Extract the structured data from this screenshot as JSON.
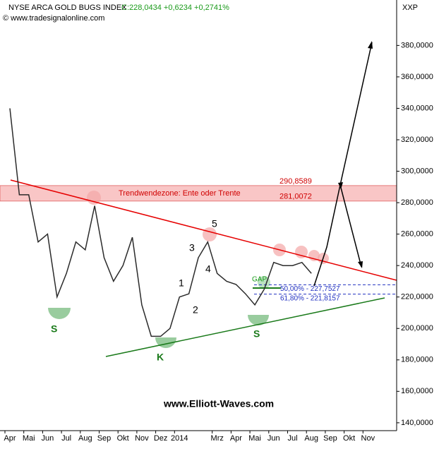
{
  "chart_data": {
    "type": "line",
    "title": "NYSE ARCA GOLD BUGS INDEX",
    "quote": "C:228,0434 +0,6234 +0,2741%",
    "source": "© www.tradesignalonline.com",
    "symbol": "XXP",
    "categories": [
      "Apr",
      null,
      "Mai",
      null,
      "Jun",
      null,
      "Jul",
      null,
      "Aug",
      null,
      "Sep",
      null,
      "Okt",
      null,
      "Nov",
      null,
      "Dez",
      null,
      "2014",
      null,
      null,
      null,
      "Mrz",
      null,
      "Apr",
      null,
      "Mai",
      null,
      "Jun",
      null,
      "Jul",
      null,
      "Aug",
      null,
      "Sep",
      null,
      "Okt",
      null,
      "Nov",
      null
    ],
    "values": [
      340,
      285,
      285,
      255,
      260,
      220,
      235,
      255,
      250,
      278,
      245,
      230,
      240,
      258,
      215,
      195,
      195,
      200,
      220,
      222,
      245,
      255,
      235,
      230,
      228,
      222,
      215,
      225,
      242,
      240,
      240,
      242,
      235,
      null,
      null,
      null,
      null,
      null,
      null,
      null
    ],
    "color": "#2b2b2b",
    "ylim": [
      135,
      408
    ],
    "yticks": [
      {
        "value": 140,
        "label": "140,0000"
      },
      {
        "value": 160,
        "label": "160,0000"
      },
      {
        "value": 180,
        "label": "180,0000"
      },
      {
        "value": 200,
        "label": "200,0000"
      },
      {
        "value": 220,
        "label": "220,0000"
      },
      {
        "value": 240,
        "label": "240,0000"
      },
      {
        "value": 260,
        "label": "260,0000"
      },
      {
        "value": 280,
        "label": "280,0000"
      },
      {
        "value": 300,
        "label": "300,0000"
      },
      {
        "value": 320,
        "label": "320,0000"
      },
      {
        "value": 340,
        "label": "340,0000"
      },
      {
        "value": 360,
        "label": "360,0000"
      },
      {
        "value": 380,
        "label": "380,0000"
      }
    ],
    "zone": {
      "label": "Trendwendezone: Ente oder Trente",
      "upper": {
        "value": 290.8589,
        "label": "290,8589"
      },
      "lower": {
        "value": 281.0072,
        "label": "281,0072"
      }
    },
    "fib_levels": [
      {
        "value": 227.7527,
        "label": "50,00% - 227,7527"
      },
      {
        "value": 221.8157,
        "label": "61,80% - 221,8157"
      }
    ],
    "wave_labels": [
      "5",
      "3",
      "4",
      "1",
      "2"
    ],
    "pattern_labels": [
      "S",
      "K",
      "S"
    ],
    "gap_label": "GAP",
    "watermark": "www.Elliott-Waves.com"
  }
}
